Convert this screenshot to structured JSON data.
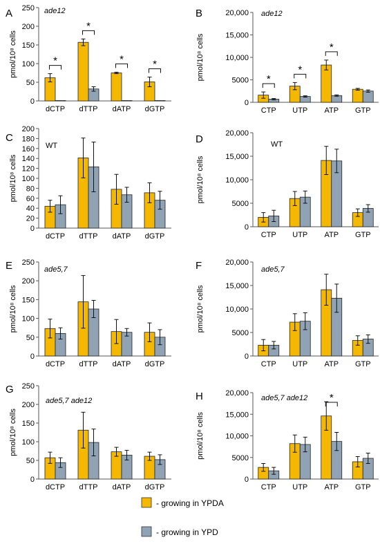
{
  "colors": {
    "ypda": "#f5b800",
    "ypd": "#8fa3b5",
    "bar_stroke": "#222222"
  },
  "legend": {
    "items": [
      {
        "label": "- growing in YPDA",
        "color": "#f5b800"
      },
      {
        "label": "- growing in YPD",
        "color": "#8fa3b5"
      }
    ]
  },
  "chart_data": [
    {
      "panel": "A",
      "type": "bar",
      "title": "ade12",
      "title_italic": true,
      "ylabel": "pmol/10⁸ cells",
      "ylim": [
        0,
        250
      ],
      "yticks": [
        0,
        50,
        100,
        150,
        200,
        250
      ],
      "ytick_labels": [
        "0",
        "50",
        "100",
        "150",
        "200",
        "250"
      ],
      "categories": [
        "dCTP",
        "dTTP",
        "dATP",
        "dGTP"
      ],
      "series": [
        {
          "values": [
            62,
            157,
            75,
            51
          ],
          "errors": [
            11,
            9,
            2,
            13
          ]
        },
        {
          "values": [
            1,
            32,
            1,
            1
          ],
          "errors": [
            0,
            6,
            0,
            0
          ]
        }
      ],
      "significant": [
        0,
        1,
        2,
        3
      ]
    },
    {
      "panel": "B",
      "type": "bar",
      "title": "ade12",
      "title_italic": true,
      "ylabel": "pmol/10⁸ cells",
      "ylim": [
        0,
        20000
      ],
      "yticks": [
        0,
        5000,
        10000,
        15000,
        20000
      ],
      "ytick_labels": [
        "0",
        "5000",
        "10,000",
        "15,000",
        "20,000"
      ],
      "categories": [
        "CTP",
        "UTP",
        "ATP",
        "GTP"
      ],
      "series": [
        {
          "values": [
            1600,
            3600,
            8300,
            2900
          ],
          "errors": [
            700,
            800,
            1100,
            200
          ]
        },
        {
          "values": [
            700,
            1300,
            1500,
            2500
          ],
          "errors": [
            150,
            150,
            150,
            250
          ]
        }
      ],
      "significant": [
        0,
        1,
        2
      ]
    },
    {
      "panel": "C",
      "type": "bar",
      "title": "WT",
      "title_italic": false,
      "ylabel": "pmol/10⁸ cells",
      "ylim": [
        0,
        200
      ],
      "yticks": [
        0,
        20,
        40,
        60,
        80,
        100,
        120,
        140,
        160,
        180,
        200
      ],
      "ytick_labels": [
        "0",
        "20",
        "40",
        "60",
        "80",
        "100",
        "120",
        "140",
        "160",
        "180",
        "200"
      ],
      "categories": [
        "dCTP",
        "dTTP",
        "dATP",
        "dGTP"
      ],
      "series": [
        {
          "values": [
            44,
            141,
            78,
            71
          ],
          "errors": [
            12,
            40,
            30,
            20
          ]
        },
        {
          "values": [
            47,
            123,
            67,
            56
          ],
          "errors": [
            18,
            50,
            15,
            18
          ]
        }
      ],
      "significant": []
    },
    {
      "panel": "D",
      "type": "bar",
      "title": "WT",
      "title_italic": false,
      "ylabel": "pmol/10⁸ cells",
      "ylim": [
        0,
        20000
      ],
      "yticks": [
        0,
        5000,
        10000,
        15000,
        20000
      ],
      "ytick_labels": [
        "0",
        "5000",
        "10,000",
        "15,000",
        "20,000"
      ],
      "categories": [
        "CTP",
        "UTP",
        "ATP",
        "GTP"
      ],
      "series": [
        {
          "values": [
            2000,
            6000,
            14100,
            3000
          ],
          "errors": [
            1000,
            1500,
            3000,
            800
          ]
        },
        {
          "values": [
            2300,
            6300,
            14000,
            3900
          ],
          "errors": [
            1200,
            1300,
            2500,
            800
          ]
        }
      ],
      "significant": []
    },
    {
      "panel": "E",
      "type": "bar",
      "title": "ade5,7",
      "title_italic": true,
      "ylabel": "pmol/10⁸ cells",
      "ylim": [
        0,
        250
      ],
      "yticks": [
        0,
        50,
        100,
        150,
        200,
        250
      ],
      "ytick_labels": [
        "0",
        "50",
        "100",
        "150",
        "200",
        "250"
      ],
      "categories": [
        "dCTP",
        "dTTP",
        "dATP",
        "dGTP"
      ],
      "series": [
        {
          "values": [
            73,
            144,
            65,
            63
          ],
          "errors": [
            25,
            70,
            32,
            25
          ]
        },
        {
          "values": [
            60,
            125,
            63,
            50
          ],
          "errors": [
            15,
            23,
            10,
            20
          ]
        }
      ],
      "significant": []
    },
    {
      "panel": "F",
      "type": "bar",
      "title": "ade5,7",
      "title_italic": true,
      "ylabel": "pmol/10⁸ cells",
      "ylim": [
        0,
        20000
      ],
      "yticks": [
        0,
        5000,
        10000,
        15000,
        20000
      ],
      "ytick_labels": [
        "0",
        "5000",
        "10,000",
        "15,000",
        "20,000"
      ],
      "categories": [
        "CTP",
        "UTP",
        "ATP",
        "GTP"
      ],
      "series": [
        {
          "values": [
            2300,
            7200,
            14100,
            3300
          ],
          "errors": [
            1200,
            1800,
            3300,
            1000
          ]
        },
        {
          "values": [
            2300,
            7400,
            12300,
            3600
          ],
          "errors": [
            800,
            1800,
            3000,
            900
          ]
        }
      ],
      "significant": []
    },
    {
      "panel": "G",
      "type": "bar",
      "title": "ade5,7 ade12",
      "title_italic": true,
      "ylabel": "pmol/10⁸ cells",
      "ylim": [
        0,
        250
      ],
      "yticks": [
        0,
        50,
        100,
        150,
        200,
        250
      ],
      "ytick_labels": [
        "0",
        "50",
        "100",
        "150",
        "200",
        "250"
      ],
      "categories": [
        "dCTP",
        "dTTP",
        "dATP",
        "dGTP"
      ],
      "series": [
        {
          "values": [
            57,
            131,
            73,
            61
          ],
          "errors": [
            15,
            48,
            12,
            11
          ]
        },
        {
          "values": [
            44,
            98,
            64,
            52
          ],
          "errors": [
            13,
            36,
            13,
            13
          ]
        }
      ],
      "significant": []
    },
    {
      "panel": "H",
      "type": "bar",
      "title": "ade5,7 ade12",
      "title_italic": true,
      "ylabel": "pmol/10⁸ cells",
      "ylim": [
        0,
        20000
      ],
      "yticks": [
        0,
        5000,
        10000,
        15000,
        20000
      ],
      "ytick_labels": [
        "0",
        "5000",
        "10,000",
        "15,000",
        "20,000"
      ],
      "categories": [
        "CTP",
        "UTP",
        "ATP",
        "GTP"
      ],
      "series": [
        {
          "values": [
            2700,
            8200,
            14600,
            4000
          ],
          "errors": [
            900,
            2000,
            3300,
            1200
          ]
        },
        {
          "values": [
            1900,
            8000,
            8700,
            4800
          ],
          "errors": [
            800,
            1700,
            2100,
            1200
          ]
        }
      ],
      "significant": [
        2
      ]
    }
  ]
}
